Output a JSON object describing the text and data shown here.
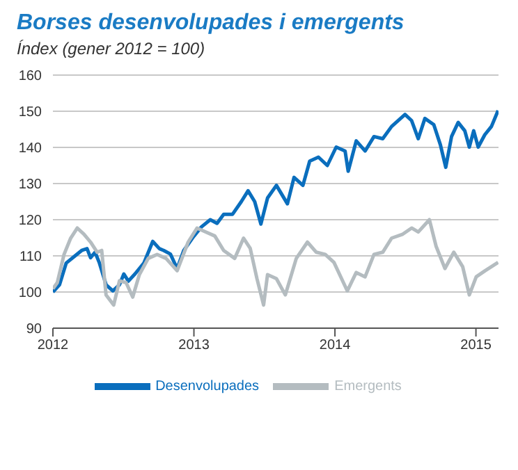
{
  "chart_data": {
    "type": "line",
    "title": "Borses desenvolupades i emergents",
    "subtitle": "Índex (gener 2012 = 100)",
    "xlim": [
      2012,
      2015.16
    ],
    "xticks": [
      2012,
      2013,
      2014,
      2015
    ],
    "ylim": [
      90,
      160
    ],
    "yticks": [
      90,
      100,
      110,
      120,
      130,
      140,
      150,
      160
    ],
    "grid": "y",
    "legend": "bottom",
    "marker": "none",
    "line_style": "solid",
    "series": [
      {
        "name": "Desenvolupades",
        "color": "#0a6ebd",
        "x": [
          2012,
          2012.047,
          2012.094,
          2012.157,
          2012.204,
          2012.242,
          2012.267,
          2012.299,
          2012.33,
          2012.377,
          2012.425,
          2012.472,
          2012.503,
          2012.535,
          2012.582,
          2012.645,
          2012.708,
          2012.755,
          2012.786,
          2012.833,
          2012.881,
          2012.928,
          2012.991,
          2013.053,
          2013.116,
          2013.164,
          2013.211,
          2013.274,
          2013.336,
          2013.384,
          2013.431,
          2013.475,
          2013.522,
          2013.585,
          2013.663,
          2013.71,
          2013.773,
          2013.821,
          2013.883,
          2013.946,
          2014.009,
          2014.072,
          2014.094,
          2014.151,
          2014.214,
          2014.277,
          2014.339,
          2014.402,
          2014.497,
          2014.544,
          2014.591,
          2014.638,
          2014.701,
          2014.748,
          2014.786,
          2014.827,
          2014.874,
          2014.921,
          2014.953,
          2014.984,
          2015.016,
          2015.063,
          2015.11,
          2015.157
        ],
        "values": [
          100,
          102,
          108,
          110,
          111.5,
          112,
          109.5,
          111,
          108,
          102,
          100.3,
          102,
          105,
          103,
          105,
          108,
          114,
          112,
          111.5,
          110.5,
          106.5,
          111.5,
          115,
          118,
          120,
          119,
          121.5,
          121.5,
          125,
          128,
          125,
          118.8,
          126,
          129.5,
          124.4,
          131.7,
          129.5,
          136.2,
          137.3,
          135,
          140.1,
          139,
          133.4,
          141.8,
          139,
          143,
          142.4,
          145.8,
          149.1,
          147.4,
          142.4,
          148,
          146.3,
          140.7,
          134.5,
          143,
          146.9,
          144.6,
          140.1,
          144.6,
          140.1,
          143.5,
          145.8,
          150.2
        ]
      },
      {
        "name": "Emergents",
        "color": "#b4bcc0",
        "x": [
          2012,
          2012.031,
          2012.079,
          2012.126,
          2012.173,
          2012.22,
          2012.267,
          2012.314,
          2012.346,
          2012.377,
          2012.431,
          2012.472,
          2012.519,
          2012.566,
          2012.613,
          2012.676,
          2012.739,
          2012.802,
          2012.881,
          2012.959,
          2013.022,
          2013.085,
          2013.148,
          2013.211,
          2013.289,
          2013.352,
          2013.399,
          2013.447,
          2013.494,
          2013.522,
          2013.585,
          2013.648,
          2013.726,
          2013.805,
          2013.868,
          2013.931,
          2013.993,
          2014.088,
          2014.151,
          2014.214,
          2014.277,
          2014.339,
          2014.402,
          2014.481,
          2014.544,
          2014.591,
          2014.67,
          2014.717,
          2014.78,
          2014.843,
          2014.906,
          2014.953,
          2015.002,
          2015.065,
          2015.157
        ],
        "values": [
          100.9,
          102.6,
          110.4,
          114.9,
          117.7,
          116,
          113.8,
          111,
          111.5,
          99.2,
          96.4,
          103.1,
          102.6,
          98.6,
          104.8,
          109.3,
          110.4,
          109.3,
          105.9,
          113.8,
          117.7,
          116.6,
          115.5,
          111.5,
          109.3,
          114.9,
          112.1,
          103.7,
          96.4,
          104.8,
          103.7,
          99.2,
          109.3,
          113.8,
          111,
          110.4,
          108.2,
          100.3,
          105.4,
          104.2,
          110.4,
          111,
          114.9,
          116,
          117.7,
          116.6,
          120,
          112.7,
          106.5,
          111,
          107,
          99.2,
          104.2,
          105.9,
          108.2
        ]
      }
    ]
  }
}
